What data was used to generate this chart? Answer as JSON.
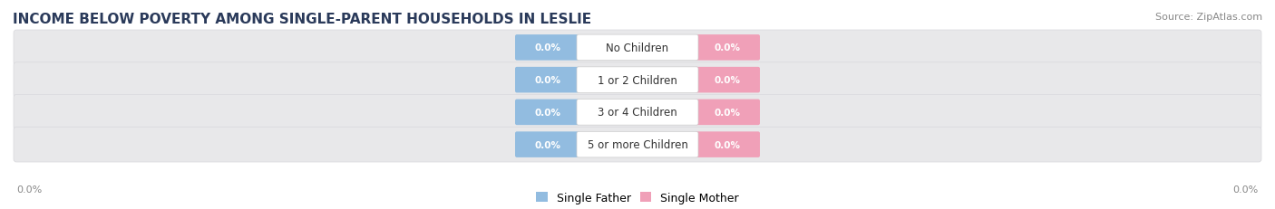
{
  "title": "INCOME BELOW POVERTY AMONG SINGLE-PARENT HOUSEHOLDS IN LESLIE",
  "source": "Source: ZipAtlas.com",
  "categories": [
    "No Children",
    "1 or 2 Children",
    "3 or 4 Children",
    "5 or more Children"
  ],
  "single_father_values": [
    0.0,
    0.0,
    0.0,
    0.0
  ],
  "single_mother_values": [
    0.0,
    0.0,
    0.0,
    0.0
  ],
  "father_color": "#92bce0",
  "mother_color": "#f0a0b8",
  "track_color": "#e8e8ea",
  "track_edge_color": "#d8d8dc",
  "title_color": "#2a3a5a",
  "source_color": "#888888",
  "label_color": "#333333",
  "value_text_color": "#ffffff",
  "axis_text_color": "#888888",
  "title_fontsize": 11,
  "source_fontsize": 8,
  "cat_fontsize": 8.5,
  "val_fontsize": 7.5,
  "legend_fontsize": 9,
  "axis_fontsize": 8,
  "background_color": "#ffffff",
  "axis_label_left": "0.0%",
  "axis_label_right": "0.0%"
}
